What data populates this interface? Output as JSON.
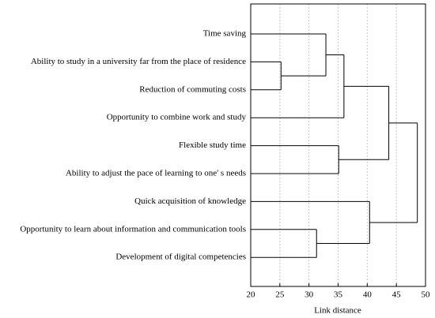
{
  "chart_data": {
    "type": "dendrogram",
    "x_label": "Link distance",
    "xlim": [
      20,
      50
    ],
    "xticks": [
      20,
      25,
      30,
      35,
      40,
      45,
      50
    ],
    "grid": true,
    "color": "#000000",
    "tree": {
      "distance": 48.6,
      "children": [
        {
          "distance": 43.7,
          "children": [
            {
              "distance": 36.0,
              "children": [
                {
                  "distance": 32.9,
                  "children": [
                    "Time saving",
                    {
                      "distance": 25.2,
                      "children": [
                        "Ability to study in a university far from the place of residence",
                        "Reduction of commuting costs"
                      ]
                    }
                  ]
                },
                "Opportunity to combine work and study"
              ]
            },
            {
              "distance": 35.1,
              "children": [
                "Flexible study time",
                "Ability to adjust the pace of learning to one' s needs"
              ]
            }
          ]
        },
        {
          "distance": 40.4,
          "children": [
            "Quick acquisition of knowledge",
            {
              "distance": 31.3,
              "children": [
                "Opportunity to learn about information and communication tools",
                "Development of digital competencies"
              ]
            }
          ]
        }
      ]
    }
  }
}
